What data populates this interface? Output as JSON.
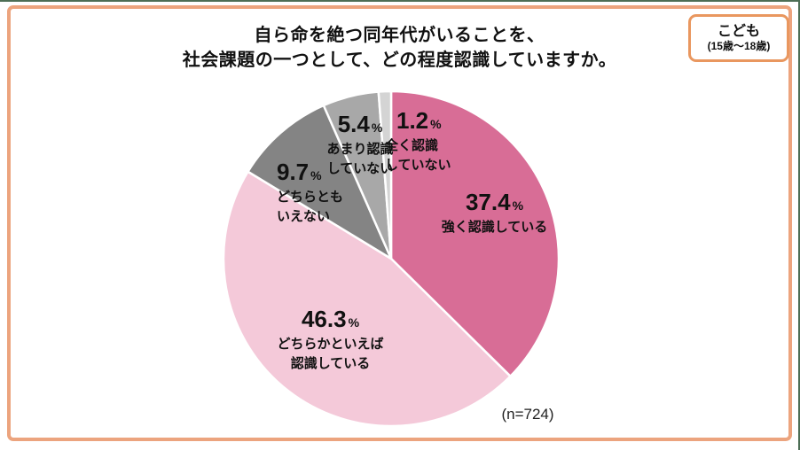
{
  "title": {
    "line1": "自ら命を絶つ同年代がいることを、",
    "line2": "社会課題の一つとして、どの程度認識していますか。"
  },
  "badge": {
    "label": "こども",
    "sublabel": "(15歳〜18歳)",
    "border_color": "#e9975f"
  },
  "frame": {
    "border_color": "#eca47e"
  },
  "edge_color": "#4d6e55",
  "chart_data": {
    "type": "pie",
    "title": "自ら命を絶つ同年代がいることを、社会課題の一つとして、どの程度認識していますか。",
    "sample_label": "(n=724)",
    "unit": "%",
    "start_angle_deg": 0,
    "direction": "clockwise",
    "slice_stroke_color": "#ffffff",
    "segments": [
      {
        "label": "強く認識している",
        "value": 37.4,
        "color": "#d86d96",
        "lines": [
          "強く認識している"
        ]
      },
      {
        "label": "どちらかといえば認識している",
        "value": 46.3,
        "color": "#f4c9d9",
        "lines": [
          "どちらかといえば",
          "認識している"
        ]
      },
      {
        "label": "どちらともいえない",
        "value": 9.7,
        "color": "#848484",
        "lines": [
          "どちらとも",
          "いえない"
        ]
      },
      {
        "label": "あまり認識していない",
        "value": 5.4,
        "color": "#a8a8a8",
        "lines": [
          "あまり認識",
          "していない"
        ]
      },
      {
        "label": "全く認識していない",
        "value": 1.2,
        "color": "#d4d4d4",
        "lines": [
          "全く認識",
          "していない"
        ]
      }
    ]
  }
}
